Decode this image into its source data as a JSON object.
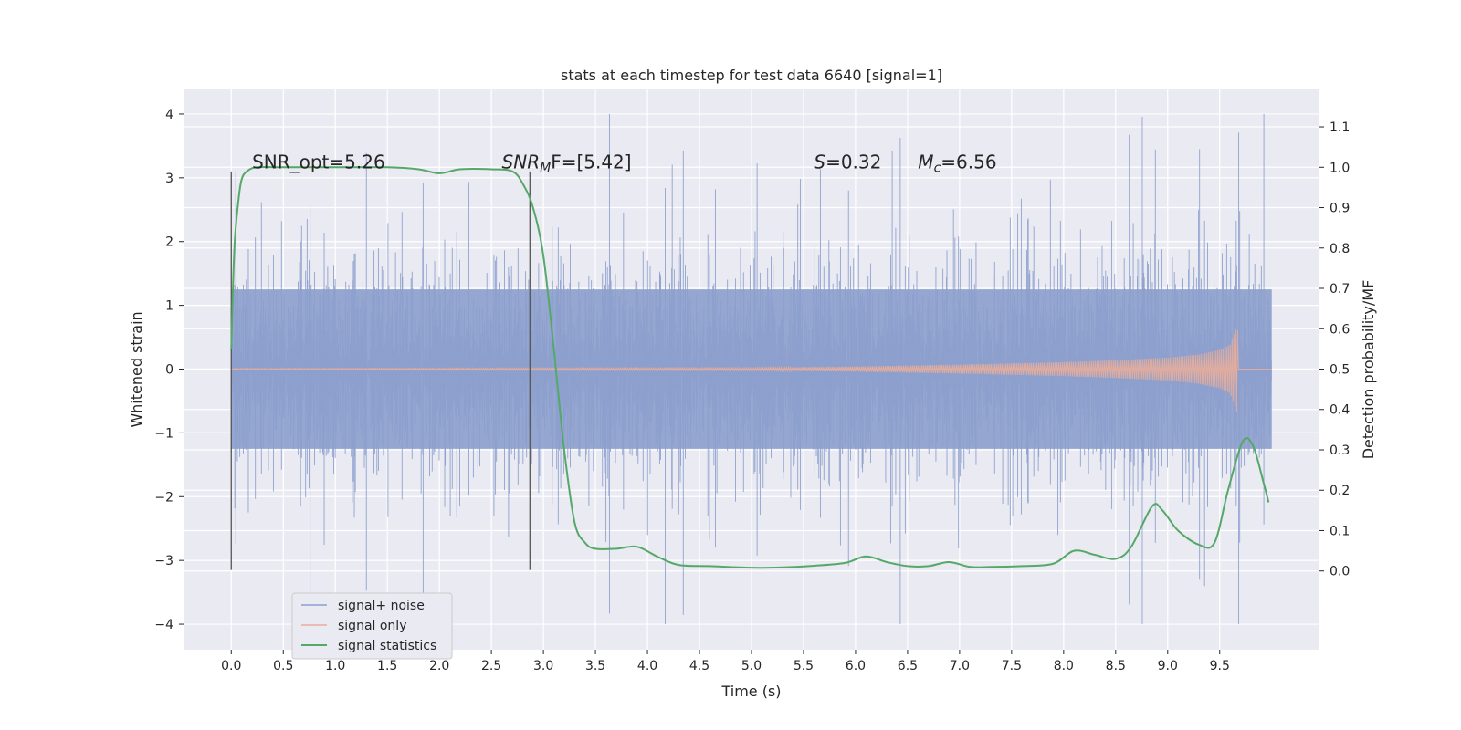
{
  "chart_data": {
    "type": "line",
    "title": "stats at each timestep for test data 6640 [signal=1]",
    "xlabel": "Time (s)",
    "ylabel_left": "Whitened strain",
    "ylabel_right": "Detection probability/MF",
    "xlim": [
      -0.45,
      10.45
    ],
    "ylim_left": [
      -4.4,
      4.4
    ],
    "ylim_right": [
      -0.195,
      1.195
    ],
    "x_ticks": [
      0.0,
      0.5,
      1.0,
      1.5,
      2.0,
      2.5,
      3.0,
      3.5,
      4.0,
      4.5,
      5.0,
      5.5,
      6.0,
      6.5,
      7.0,
      7.5,
      8.0,
      8.5,
      9.0,
      9.5
    ],
    "x_tick_labels": [
      "0.0",
      "0.5",
      "1.0",
      "1.5",
      "2.0",
      "2.5",
      "3.0",
      "3.5",
      "4.0",
      "4.5",
      "5.0",
      "5.5",
      "6.0",
      "6.5",
      "7.0",
      "7.5",
      "8.0",
      "8.5",
      "9.0",
      "9.5"
    ],
    "y_left_ticks": [
      4,
      3,
      2,
      1,
      0,
      -1,
      -2,
      -3,
      -4
    ],
    "y_left_tick_labels": [
      "4",
      "3",
      "2",
      "1",
      "0",
      "−1",
      "−2",
      "−3",
      "−4"
    ],
    "y_right_ticks": [
      1.1,
      1.0,
      0.9,
      0.8,
      0.7,
      0.6,
      0.5,
      0.4,
      0.3,
      0.2,
      0.1,
      0.0
    ],
    "y_right_tick_labels": [
      "1.1",
      "1.0",
      "0.9",
      "0.8",
      "0.7",
      "0.6",
      "0.5",
      "0.4",
      "0.3",
      "0.2",
      "0.1",
      "0.0"
    ],
    "grid": true,
    "legend_placement": "lower-left",
    "series": [
      {
        "name": "signal+ noise",
        "axis": "left",
        "color": "#8c9fcc",
        "x_range": [
          0.0,
          10.0
        ],
        "amplitude_envelope": 4.0
      },
      {
        "name": "signal only",
        "axis": "left",
        "color": "#dd8452",
        "x": [
          0.0,
          5.0,
          6.0,
          7.0,
          8.0,
          8.5,
          9.0,
          9.3,
          9.5,
          9.6,
          9.67,
          9.68,
          10.0
        ],
        "envelope": [
          0.01,
          0.02,
          0.04,
          0.07,
          0.11,
          0.14,
          0.18,
          0.23,
          0.3,
          0.38,
          0.7,
          0.0,
          0.0
        ]
      },
      {
        "name": "signal statistics",
        "axis": "right",
        "color": "#55a868",
        "x": [
          0.0,
          0.03,
          0.07,
          0.1,
          0.15,
          0.25,
          0.5,
          1.0,
          1.5,
          1.8,
          2.0,
          2.2,
          2.5,
          2.7,
          2.8,
          2.9,
          3.0,
          3.1,
          3.2,
          3.3,
          3.4,
          3.5,
          3.7,
          3.9,
          4.1,
          4.3,
          4.6,
          5.0,
          5.3,
          5.6,
          5.9,
          6.1,
          6.3,
          6.5,
          6.7,
          6.9,
          7.1,
          7.3,
          7.6,
          7.9,
          8.1,
          8.3,
          8.5,
          8.65,
          8.85,
          8.95,
          9.1,
          9.3,
          9.45,
          9.58,
          9.72,
          9.82,
          9.92,
          9.97
        ],
        "y": [
          0.55,
          0.8,
          0.92,
          0.97,
          0.99,
          1.0,
          1.0,
          1.0,
          1.0,
          0.995,
          0.985,
          0.995,
          0.995,
          0.99,
          0.96,
          0.9,
          0.78,
          0.55,
          0.3,
          0.12,
          0.07,
          0.055,
          0.055,
          0.06,
          0.035,
          0.015,
          0.012,
          0.008,
          0.009,
          0.013,
          0.02,
          0.036,
          0.022,
          0.012,
          0.012,
          0.022,
          0.01,
          0.01,
          0.012,
          0.018,
          0.05,
          0.04,
          0.03,
          0.06,
          0.16,
          0.15,
          0.1,
          0.065,
          0.07,
          0.2,
          0.32,
          0.31,
          0.22,
          0.17
        ]
      }
    ],
    "vertical_lines": [
      0.0,
      2.87
    ],
    "annotations": [
      {
        "text": "SNR_opt=5.26",
        "x": 0.2,
        "y": 3.15
      },
      {
        "text": "F=[5.42]",
        "prefix_italic": "SNR",
        "sub": "M",
        "x": 2.6,
        "y": 3.15
      },
      {
        "text": "=0.32",
        "prefix_italic": "S",
        "x": 5.6,
        "y": 3.15
      },
      {
        "text": "=6.56",
        "prefix_italic": "M",
        "sub": "c",
        "x": 6.6,
        "y": 3.15
      }
    ]
  }
}
